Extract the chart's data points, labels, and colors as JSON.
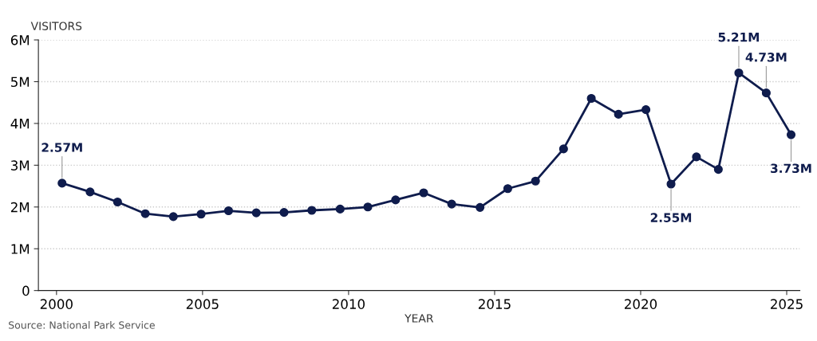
{
  "chart_data": {
    "type": "line",
    "ylabel": "VISITORS",
    "xlabel": "YEAR",
    "annotations": [
      "Source: National Park Service"
    ],
    "x": [
      2000.19,
      2001.15,
      2002.09,
      2003.04,
      2004.0,
      2004.95,
      2005.89,
      2006.84,
      2007.79,
      2008.74,
      2009.71,
      2010.66,
      2011.61,
      2012.57,
      2013.53,
      2014.5,
      2015.45,
      2016.4,
      2017.36,
      2018.31,
      2019.24,
      2020.18,
      2021.04,
      2021.91,
      2022.66,
      2023.36,
      2024.3,
      2025.15
    ],
    "series": [
      {
        "color": "#0f1c4d",
        "values": [
          2.57,
          2.36,
          2.12,
          1.84,
          1.77,
          1.83,
          1.91,
          1.86,
          1.87,
          1.92,
          1.95,
          2.0,
          2.17,
          2.34,
          2.07,
          1.99,
          2.44,
          2.62,
          3.39,
          4.6,
          4.22,
          4.33,
          2.55,
          3.2,
          2.9,
          5.21,
          4.73,
          3.73
        ],
        "value_labels": [
          "2.57M",
          null,
          null,
          null,
          null,
          null,
          null,
          null,
          null,
          null,
          null,
          null,
          null,
          null,
          null,
          null,
          null,
          null,
          null,
          null,
          null,
          null,
          "2.55M",
          null,
          null,
          "5.21M",
          "4.73M",
          "3.73M"
        ]
      }
    ],
    "xlim": [
      1999.38,
      2025.45
    ],
    "xticks": [
      2000,
      2005,
      2010,
      2015,
      2020,
      2025
    ],
    "ylim": [
      0,
      6
    ],
    "yticks": [
      0,
      {
        "value": 1,
        "label": "1M"
      },
      {
        "value": 2,
        "label": "2M"
      },
      {
        "value": 3,
        "label": "3M"
      },
      {
        "value": 4,
        "label": "4M"
      },
      {
        "value": 5,
        "label": "5M"
      },
      {
        "value": 6,
        "label": "6M"
      }
    ],
    "grid": "y",
    "marker": "circle",
    "line_style": "solid",
    "legend": false
  }
}
